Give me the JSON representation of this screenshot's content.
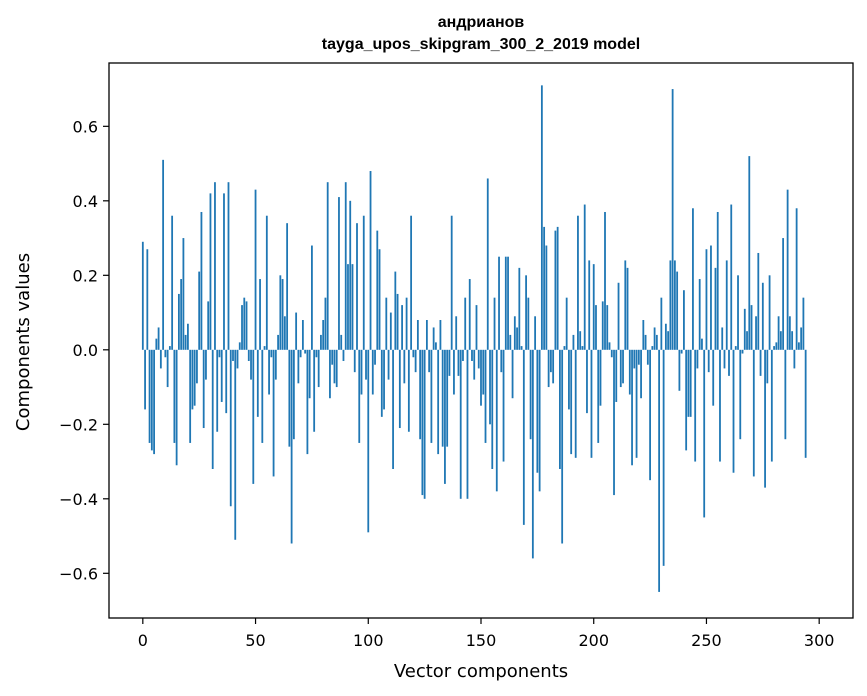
{
  "chart_data": {
    "type": "bar",
    "title_line1": "андрианов",
    "title_line2": "tayga_upos_skipgram_300_2_2019 model",
    "xlabel": "Vector components",
    "ylabel": "Components values",
    "xlim": [
      -15,
      315
    ],
    "ylim": [
      -0.72,
      0.77
    ],
    "xticks": [
      0,
      50,
      100,
      150,
      200,
      250,
      300
    ],
    "xtick_labels": [
      "0",
      "50",
      "100",
      "150",
      "200",
      "250",
      "300"
    ],
    "yticks": [
      -0.6,
      -0.4,
      -0.2,
      0.0,
      0.2,
      0.4,
      0.6
    ],
    "ytick_labels": [
      "−0.6",
      "−0.4",
      "−0.2",
      "0.0",
      "0.2",
      "0.4",
      "0.6"
    ],
    "bar_color": "#1f77b4",
    "values": [
      0.29,
      -0.16,
      0.27,
      -0.25,
      -0.27,
      -0.28,
      0.03,
      0.06,
      -0.05,
      0.51,
      -0.02,
      -0.1,
      0.01,
      0.36,
      -0.25,
      -0.31,
      0.15,
      0.19,
      0.3,
      0.04,
      0.07,
      -0.25,
      -0.16,
      -0.15,
      -0.09,
      0.21,
      0.37,
      -0.21,
      -0.08,
      0.13,
      0.42,
      -0.32,
      0.45,
      -0.22,
      -0.02,
      -0.14,
      0.42,
      -0.17,
      0.45,
      -0.42,
      -0.03,
      -0.51,
      -0.05,
      0.02,
      0.12,
      0.14,
      0.13,
      -0.03,
      -0.08,
      -0.36,
      0.43,
      -0.18,
      0.19,
      -0.25,
      0.01,
      0.36,
      -0.12,
      -0.02,
      -0.34,
      -0.08,
      0.04,
      0.2,
      0.19,
      0.09,
      0.34,
      -0.26,
      -0.52,
      -0.24,
      0.1,
      -0.09,
      -0.02,
      0.08,
      -0.01,
      -0.28,
      -0.13,
      0.28,
      -0.22,
      -0.02,
      -0.1,
      0.04,
      0.08,
      0.14,
      0.45,
      -0.13,
      -0.04,
      -0.09,
      -0.1,
      0.41,
      0.04,
      -0.03,
      0.45,
      0.23,
      0.4,
      0.23,
      -0.06,
      0.34,
      -0.25,
      -0.12,
      0.36,
      -0.08,
      -0.49,
      0.48,
      -0.12,
      -0.04,
      0.32,
      0.27,
      -0.18,
      -0.16,
      0.14,
      -0.08,
      0.1,
      -0.32,
      0.21,
      0.15,
      -0.21,
      0.12,
      -0.09,
      0.14,
      -0.22,
      0.36,
      -0.02,
      -0.06,
      0.08,
      -0.24,
      -0.39,
      -0.4,
      0.08,
      -0.06,
      -0.25,
      0.06,
      0.02,
      -0.28,
      0.08,
      -0.26,
      -0.36,
      -0.26,
      -0.07,
      0.36,
      -0.12,
      0.09,
      -0.07,
      -0.4,
      -0.03,
      0.14,
      -0.4,
      0.19,
      -0.03,
      -0.08,
      0.12,
      -0.05,
      -0.15,
      -0.12,
      -0.25,
      0.46,
      -0.2,
      -0.32,
      0.14,
      -0.38,
      0.25,
      -0.06,
      -0.3,
      0.25,
      0.25,
      0.04,
      -0.13,
      0.09,
      0.06,
      0.22,
      0.01,
      -0.47,
      0.2,
      0.14,
      -0.24,
      -0.56,
      0.09,
      -0.33,
      -0.38,
      0.71,
      0.33,
      0.28,
      -0.1,
      -0.06,
      -0.09,
      0.32,
      0.33,
      -0.32,
      -0.52,
      0.01,
      0.14,
      -0.16,
      -0.28,
      0.04,
      -0.29,
      0.36,
      0.05,
      0.01,
      0.39,
      -0.17,
      0.24,
      -0.29,
      0.23,
      0.12,
      -0.25,
      -0.15,
      0.13,
      0.37,
      0.12,
      0.02,
      -0.02,
      -0.39,
      -0.14,
      0.18,
      -0.1,
      -0.09,
      0.24,
      0.22,
      -0.12,
      -0.31,
      -0.05,
      -0.29,
      -0.04,
      -0.13,
      0.08,
      0.04,
      -0.04,
      -0.35,
      0.01,
      0.06,
      0.04,
      -0.65,
      0.14,
      -0.58,
      0.07,
      0.05,
      0.24,
      0.7,
      0.24,
      0.21,
      -0.11,
      -0.01,
      0.16,
      -0.27,
      -0.18,
      -0.18,
      0.38,
      -0.3,
      -0.05,
      0.19,
      0.03,
      -0.45,
      0.27,
      -0.06,
      0.28,
      -0.15,
      0.22,
      0.37,
      -0.3,
      0.06,
      -0.05,
      0.24,
      -0.07,
      0.39,
      -0.33,
      0.01,
      0.2,
      -0.24,
      -0.01,
      0.11,
      0.05,
      0.52,
      0.12,
      -0.34,
      0.09,
      0.26,
      -0.07,
      0.18,
      -0.37,
      -0.09,
      0.2,
      -0.3,
      0.01,
      0.02,
      0.09,
      0.05,
      0.3,
      -0.24,
      0.43,
      0.09,
      0.05,
      -0.05,
      0.38,
      0.02,
      0.06,
      0.14,
      -0.29
    ]
  }
}
